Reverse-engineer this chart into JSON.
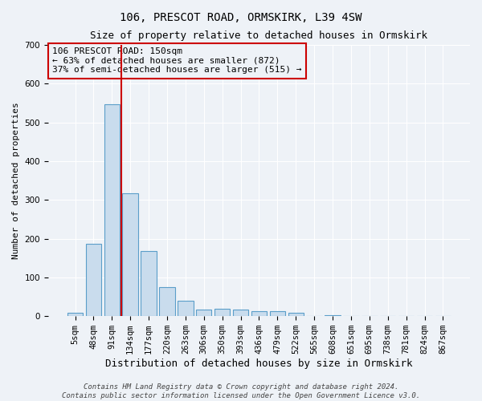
{
  "title": "106, PRESCOT ROAD, ORMSKIRK, L39 4SW",
  "subtitle": "Size of property relative to detached houses in Ormskirk",
  "xlabel": "Distribution of detached houses by size in Ormskirk",
  "ylabel": "Number of detached properties",
  "bin_labels": [
    "5sqm",
    "48sqm",
    "91sqm",
    "134sqm",
    "177sqm",
    "220sqm",
    "263sqm",
    "306sqm",
    "350sqm",
    "393sqm",
    "436sqm",
    "479sqm",
    "522sqm",
    "565sqm",
    "608sqm",
    "651sqm",
    "695sqm",
    "738sqm",
    "781sqm",
    "824sqm",
    "867sqm"
  ],
  "bar_heights": [
    8,
    186,
    547,
    316,
    168,
    74,
    40,
    18,
    20,
    16,
    12,
    12,
    8,
    0,
    3,
    0,
    0,
    0,
    0,
    0,
    0
  ],
  "bar_color": "#c9dced",
  "bar_edge_color": "#5b9ec9",
  "vline_color": "#cc0000",
  "vline_x_index": 2.5,
  "ylim": [
    0,
    700
  ],
  "yticks": [
    0,
    100,
    200,
    300,
    400,
    500,
    600,
    700
  ],
  "annotation_text": "106 PRESCOT ROAD: 150sqm\n← 63% of detached houses are smaller (872)\n37% of semi-detached houses are larger (515) →",
  "footer_line1": "Contains HM Land Registry data © Crown copyright and database right 2024.",
  "footer_line2": "Contains public sector information licensed under the Open Government Licence v3.0.",
  "bg_color": "#eef2f7",
  "grid_color": "#ffffff",
  "title_fontsize": 10,
  "subtitle_fontsize": 9,
  "xlabel_fontsize": 9,
  "ylabel_fontsize": 8,
  "tick_fontsize": 7.5,
  "annotation_fontsize": 8,
  "footer_fontsize": 6.5,
  "annotation_box_color": "#cc0000"
}
